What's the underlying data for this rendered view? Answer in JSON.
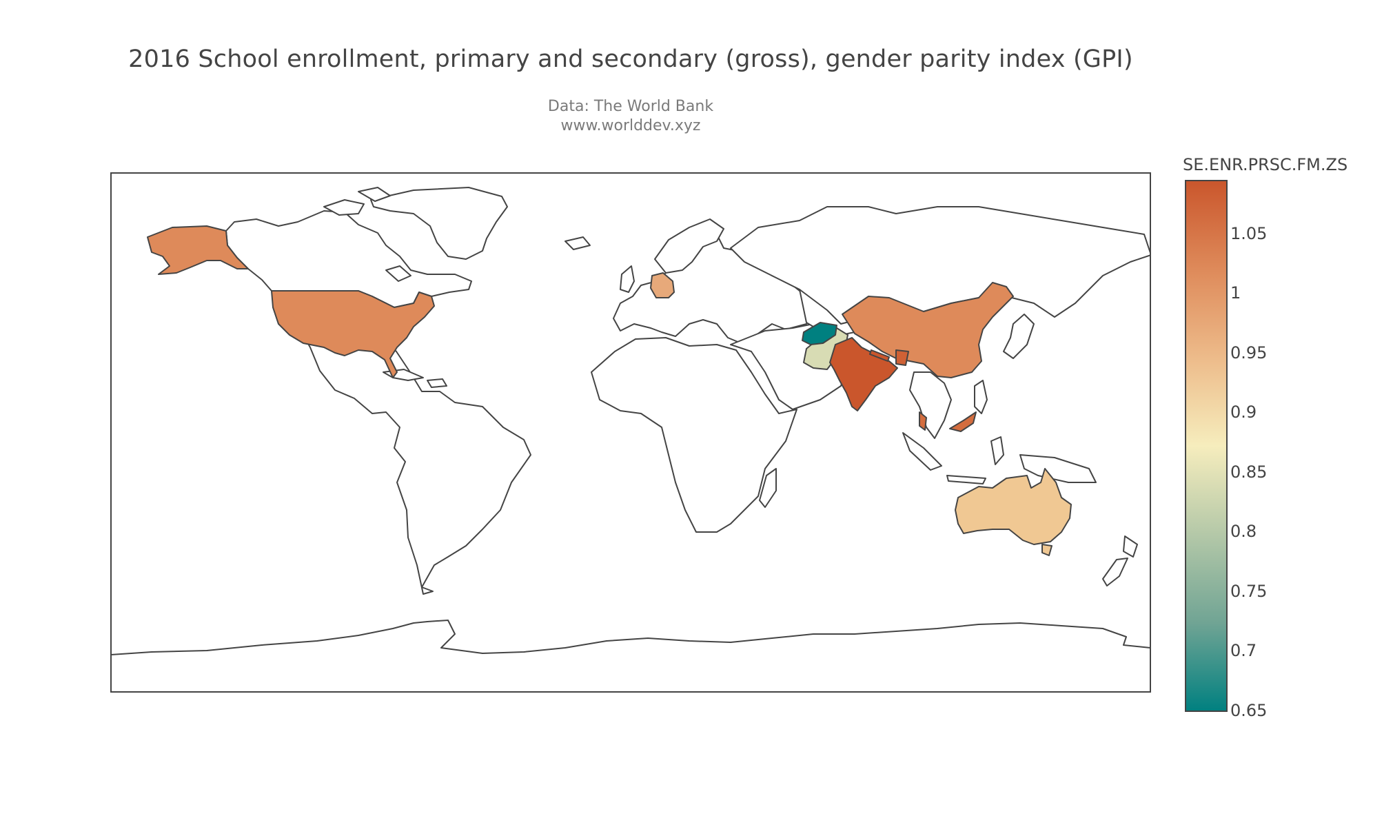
{
  "title": "2016 School enrollment, primary and secondary (gross), gender parity index (GPI)",
  "subtitle_lines": [
    "Data: The World Bank",
    "www.worlddev.xyz"
  ],
  "colorbar": {
    "title": "SE.ENR.PRSC.FM.ZS",
    "min": 0.65,
    "max": 1.095,
    "ticks": [
      "0.65",
      "0.7",
      "0.75",
      "0.8",
      "0.85",
      "0.9",
      "0.95",
      "1",
      "1.05"
    ],
    "colors": [
      "#008080",
      "#70a494",
      "#b4c8a8",
      "#f6edbd",
      "#edbb8a",
      "#de8a5a",
      "#ca562c"
    ]
  },
  "chart_data": {
    "type": "choropleth",
    "variable": "SE.ENR.PRSC.FM.ZS",
    "year": 2016,
    "regions": [
      {
        "name": "United States",
        "value": 1.0
      },
      {
        "name": "Germany",
        "value": 0.97
      },
      {
        "name": "Afghanistan",
        "value": 0.65
      },
      {
        "name": "Pakistan",
        "value": 0.84
      },
      {
        "name": "India",
        "value": 1.08
      },
      {
        "name": "Nepal",
        "value": 1.08
      },
      {
        "name": "Bangladesh",
        "value": 1.07
      },
      {
        "name": "China",
        "value": 1.01
      },
      {
        "name": "Malaysia",
        "value": 1.05
      },
      {
        "name": "Australia",
        "value": 0.95
      }
    ]
  }
}
